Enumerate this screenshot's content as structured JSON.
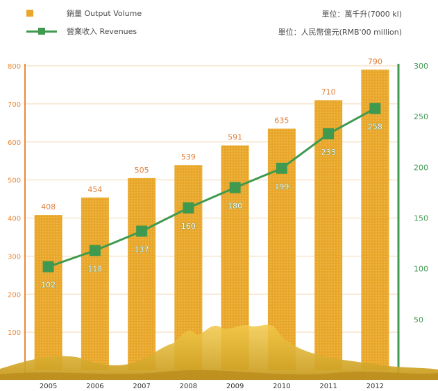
{
  "legend": {
    "bar_label": "銷量 Output Volume",
    "line_label": "營業收入 Revenues"
  },
  "units": {
    "bar_unit": "單位：萬千升(7000 kl)",
    "line_unit": "單位：人民幣億元(RMB'00 million)"
  },
  "colors": {
    "bar": "#e8a62a",
    "line": "#3f9a4f",
    "left_axis": "#e8893a",
    "right_axis": "#3f9a4f",
    "grid": "#f3d7b3"
  },
  "chart_data": {
    "type": "bar",
    "categories": [
      "2005",
      "2006",
      "2007",
      "2008",
      "2009",
      "2010",
      "2011",
      "2012"
    ],
    "series": [
      {
        "name": "銷量 Output Volume",
        "type": "bar",
        "axis": "left",
        "values": [
          408,
          454,
          505,
          539,
          591,
          635,
          710,
          790
        ],
        "labels": [
          "408",
          "454",
          "505",
          "539",
          "591",
          "635",
          "710",
          "790"
        ]
      },
      {
        "name": "營業收入 Revenues",
        "type": "line",
        "axis": "right",
        "values": [
          102,
          118,
          137,
          160,
          180,
          199,
          233,
          258
        ],
        "labels": [
          "102",
          "118",
          "137",
          "160",
          "180",
          "199",
          "233",
          "258"
        ]
      }
    ],
    "left_axis": {
      "ylim": [
        0,
        800
      ],
      "ticks": [
        "100",
        "200",
        "300",
        "400",
        "500",
        "600",
        "700",
        "800"
      ]
    },
    "right_axis": {
      "ylim": [
        0,
        300
      ],
      "ticks": [
        "50",
        "100",
        "150",
        "200",
        "250",
        "300"
      ]
    },
    "grid": true
  }
}
